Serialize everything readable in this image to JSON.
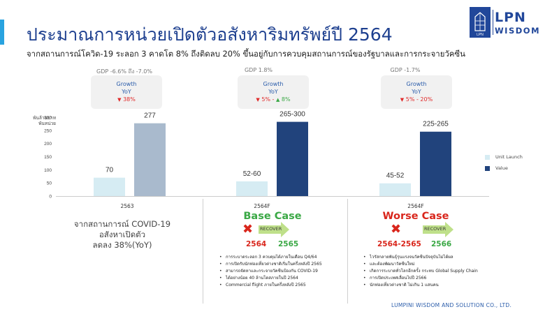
{
  "header": {
    "title": "ประมาณการหน่วยเปิดตัวอสังหาริมทรัพย์ปี 2564",
    "subtitle": "จากสถานการณ์โควิด-19 ระลอก 3 คาดโต 8% ถึงติดลบ 20% ขึ้นอยู่กับการควบคุมสถานการณ์ของรัฐบาลและการกระจายวัคซีน"
  },
  "logo": {
    "line1": "LPN",
    "line2": "WISDOM",
    "box_text": "LPN"
  },
  "panels": [
    {
      "gdp": "GDP -6.6% ถึง -7.0%",
      "growth_label": "Growth",
      "yoy_label": "YoY",
      "yoy_arrow1": "▼",
      "yoy_value": "38%",
      "period": "2563",
      "note_line1": "จากสถานการณ์ COVID-19",
      "note_line2": "อสังหาเปิดตัว",
      "note_line3": "ลดลง 38%(YoY)"
    },
    {
      "gdp": "GDP 1.8%",
      "growth_label": "Growth",
      "yoy_label": "YoY",
      "yoy_arrow1": "▼",
      "yoy_value1": "5% - ",
      "yoy_arrow2": "▲",
      "yoy_value2": "8%",
      "period": "2564F",
      "case_title": "Base Case",
      "year_from": "2564",
      "recover_label": "RECOVER",
      "year_to": "2565",
      "bullets": [
        "การระบาดระลอก 3 ควบคุมได้ภายในเดือน Q4/64",
        "การเปิดรับนักท่องเที่ยวต่างชาติเริ่มในครึ่งหลังปี 2565",
        "สามารถจัดหาและกระจายวัคซีนป้องกัน COVID-19",
        "ได้อย่างน้อย 40 ล้านโดสภายในปี 2564",
        "Commercial flight ภายในครึ่งหลังปี 2565"
      ]
    },
    {
      "gdp": "GDP -1.7%",
      "growth_label": "Growth",
      "yoy_label": "YoY",
      "yoy_arrow1": "▼",
      "yoy_value": "5% - 20%",
      "period": "2564F",
      "case_title": "Worse Case",
      "year_from": "2564-2565",
      "recover_label": "RECOVER",
      "year_to": "2566",
      "bullets": [
        "ไวรัสกลายพันธุ์รุนแรงจนวัคซีนปัจจุบันไม่ได้ผล",
        "และต้องพัฒนาวัคซีนใหม่",
        "เกิดการระบาดทั่วโลกอีกครั้ง กระทบ Global Supply Chain",
        "การเปิดประเทศเลื่อนไปปี 2566",
        "นักท่องเที่ยวต่างชาติ ไม่เกิน 1 แสนคน"
      ]
    }
  ],
  "footer": "LUMPINI WISDOM AND SOLUTION CO., LTD.",
  "colors": {
    "unit_launch": "#d6ecf3",
    "value_2563": "#a9bacd",
    "value": "#21437c",
    "title": "#1d3f8f",
    "accent": "#29a3e0"
  },
  "chart_data": {
    "type": "bar",
    "unit_label_line1": "พันล้านบาท",
    "unit_label_line2": "พันหน่วย",
    "ylim": [
      0,
      300
    ],
    "yticks": [
      0,
      50,
      100,
      150,
      200,
      250,
      300
    ],
    "categories": [
      "2563",
      "2564F Base Case",
      "2564F Worse Case"
    ],
    "series": [
      {
        "name": "Unit Launch",
        "values": [
          70,
          56,
          48.5
        ],
        "labels": [
          "70",
          "52-60",
          "45-52"
        ]
      },
      {
        "name": "Value",
        "values": [
          277,
          282.5,
          245
        ],
        "labels": [
          "277",
          "265-300",
          "225-265"
        ]
      }
    ]
  }
}
